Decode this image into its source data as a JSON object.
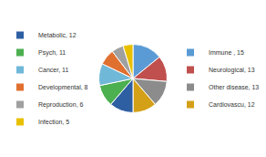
{
  "chart_data": {
    "type": "pie",
    "categories": [
      "Immune , 15",
      "Neurological, 13",
      "Other disease, 13",
      "Cardiovascu, 12",
      "Metabolic, 12",
      "Psych, 11",
      "Cancer, 11",
      "Developmental, 8",
      "Reproduction, 6",
      "Infection, 5"
    ],
    "values": [
      15,
      13,
      13,
      12,
      12,
      11,
      11,
      8,
      6,
      5
    ],
    "colors": [
      "#5B9BD5",
      "#C0504D",
      "#8C8C8C",
      "#D4A017",
      "#2E5FA3",
      "#4CAF50",
      "#70B8D8",
      "#E07030",
      "#A0A0A0",
      "#E8C000"
    ]
  }
}
